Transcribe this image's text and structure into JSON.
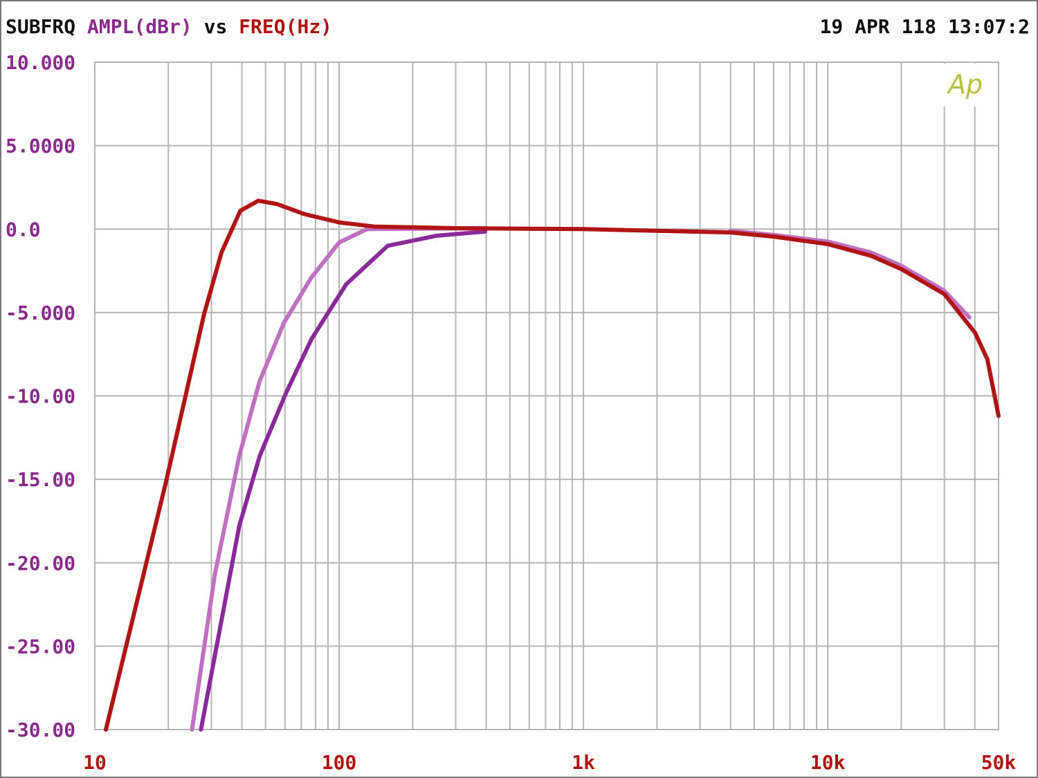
{
  "header": {
    "prefix": "SUBFRQ",
    "y_quantity": "AMPL(dBr)",
    "vs": "vs",
    "x_quantity": "FREQ(Hz)",
    "timestamp": "19 APR 118 13:07:2",
    "logo": "Ap"
  },
  "colors": {
    "frame": "#777777",
    "grid": "#b4b4b4",
    "y_labels": "#8a2a8a",
    "x_labels": "#b01010",
    "logo": "#b8c040"
  },
  "chart_data": {
    "type": "line",
    "title": "AMPL(dBr) vs FREQ(Hz)",
    "xlabel": "FREQ(Hz)",
    "ylabel": "AMPL(dBr)",
    "xscale": "log",
    "xlim": [
      10,
      50000
    ],
    "ylim": [
      -30,
      10
    ],
    "grid": true,
    "y_tick_values": [
      10,
      5,
      0,
      -5,
      -10,
      -15,
      -20,
      -25,
      -30
    ],
    "y_tick_labels": [
      "10.000",
      "5.0000",
      "0.0",
      "-5.000",
      "-10.00",
      "-15.00",
      "-20.00",
      "-25.00",
      "-30.00"
    ],
    "x_tick_values": [
      10,
      100,
      1000,
      10000,
      50000
    ],
    "x_tick_labels": [
      "10",
      "100",
      "1k",
      "10k",
      "50k"
    ],
    "series": [
      {
        "color": "#b01414",
        "points": [
          [
            11.1,
            -30
          ],
          [
            19.6,
            -15.1
          ],
          [
            28,
            -5.1
          ],
          [
            33,
            -1.4
          ],
          [
            39.4,
            1.1
          ],
          [
            46.7,
            1.7
          ],
          [
            55.7,
            1.5
          ],
          [
            72,
            0.9
          ],
          [
            100,
            0.4
          ],
          [
            139,
            0.15
          ],
          [
            300,
            0.05
          ],
          [
            1000,
            0
          ],
          [
            4000,
            -0.2
          ],
          [
            6000,
            -0.45
          ],
          [
            10000,
            -0.9
          ],
          [
            15000,
            -1.6
          ],
          [
            20000,
            -2.4
          ],
          [
            30000,
            -3.9
          ],
          [
            40000,
            -6.2
          ],
          [
            45000,
            -7.8
          ],
          [
            50000,
            -11.2
          ]
        ]
      },
      {
        "color": "#c070c0",
        "points": [
          [
            25,
            -30
          ],
          [
            31,
            -20.7
          ],
          [
            39,
            -13.6
          ],
          [
            47.3,
            -9.1
          ],
          [
            59.5,
            -5.6
          ],
          [
            77,
            -2.9
          ],
          [
            100,
            -0.8
          ],
          [
            130,
            0
          ],
          [
            400,
            0.05
          ]
        ]
      },
      {
        "color": "#c070c0",
        "points": [
          [
            4000,
            -0.1
          ],
          [
            6000,
            -0.35
          ],
          [
            10000,
            -0.75
          ],
          [
            15000,
            -1.4
          ],
          [
            20000,
            -2.2
          ],
          [
            30000,
            -3.7
          ],
          [
            38000,
            -5.3
          ]
        ]
      },
      {
        "color": "#8a2a9a",
        "points": [
          [
            27.2,
            -30
          ],
          [
            39,
            -17.8
          ],
          [
            47.3,
            -13.6
          ],
          [
            60.3,
            -9.9
          ],
          [
            77,
            -6.6
          ],
          [
            107,
            -3.3
          ],
          [
            158,
            -1.0
          ],
          [
            250,
            -0.4
          ],
          [
            396,
            -0.15
          ]
        ]
      }
    ]
  }
}
